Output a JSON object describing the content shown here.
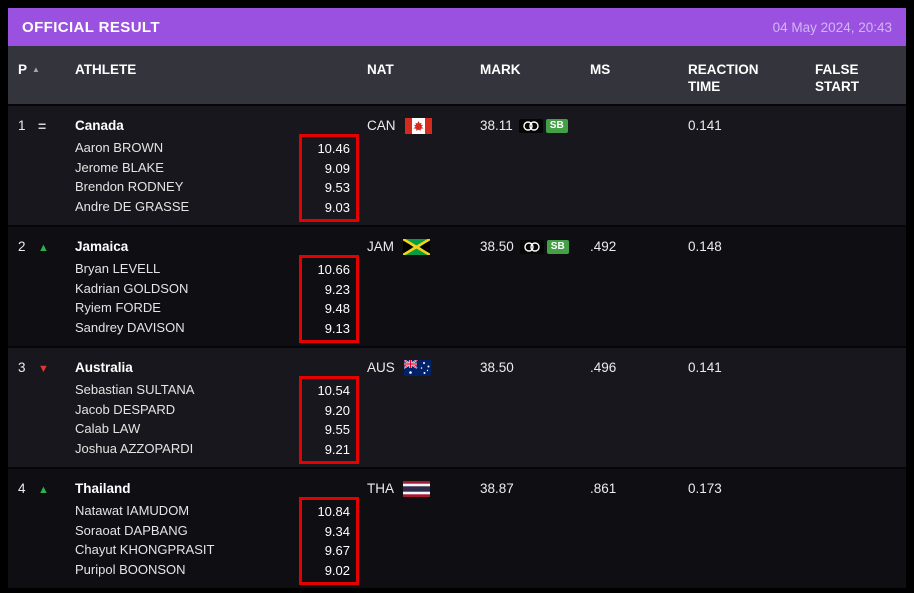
{
  "header": {
    "title": "OFFICIAL RESULT",
    "datetime": "04 May 2024, 20:43"
  },
  "table": {
    "columns": {
      "pos": "P",
      "athlete": "ATHLETE",
      "nat": "NAT",
      "mark": "MARK",
      "ms": "MS",
      "reaction": "REACTION TIME",
      "false_start": "FALSE START"
    },
    "rows": [
      {
        "pos": "1",
        "change": "same",
        "change_symbol": "=",
        "team": "Canada",
        "nat": "CAN",
        "mark": "38.11",
        "badges": [
          {
            "type": "olympic-qualifier",
            "label": ""
          },
          {
            "type": "season-best",
            "label": "SB"
          }
        ],
        "ms": "",
        "reaction": "0.141",
        "false_start": "",
        "athletes": [
          {
            "name": "Aaron BROWN",
            "split": "10.46"
          },
          {
            "name": "Jerome BLAKE",
            "split": "9.09"
          },
          {
            "name": "Brendon RODNEY",
            "split": "9.53"
          },
          {
            "name": "Andre DE GRASSE",
            "split": "9.03"
          }
        ]
      },
      {
        "pos": "2",
        "change": "up",
        "change_symbol": "▲",
        "team": "Jamaica",
        "nat": "JAM",
        "mark": "38.50",
        "badges": [
          {
            "type": "olympic-qualifier",
            "label": ""
          },
          {
            "type": "season-best",
            "label": "SB"
          }
        ],
        "ms": ".492",
        "reaction": "0.148",
        "false_start": "",
        "athletes": [
          {
            "name": "Bryan LEVELL",
            "split": "10.66"
          },
          {
            "name": "Kadrian GOLDSON",
            "split": "9.23"
          },
          {
            "name": "Ryiem FORDE",
            "split": "9.48"
          },
          {
            "name": "Sandrey DAVISON",
            "split": "9.13"
          }
        ]
      },
      {
        "pos": "3",
        "change": "down",
        "change_symbol": "▼",
        "team": "Australia",
        "nat": "AUS",
        "mark": "38.50",
        "badges": [],
        "ms": ".496",
        "reaction": "0.141",
        "false_start": "",
        "athletes": [
          {
            "name": "Sebastian SULTANA",
            "split": "10.54"
          },
          {
            "name": "Jacob DESPARD",
            "split": "9.20"
          },
          {
            "name": "Calab LAW",
            "split": "9.55"
          },
          {
            "name": "Joshua AZZOPARDI",
            "split": "9.21"
          }
        ]
      },
      {
        "pos": "4",
        "change": "up",
        "change_symbol": "▲",
        "team": "Thailand",
        "nat": "THA",
        "mark": "38.87",
        "badges": [],
        "ms": ".861",
        "reaction": "0.173",
        "false_start": "",
        "athletes": [
          {
            "name": "Natawat IAMUDOM",
            "split": "10.84"
          },
          {
            "name": "Soraoat DAPBANG",
            "split": "9.34"
          },
          {
            "name": "Chayut KHONGPRASIT",
            "split": "9.67"
          },
          {
            "name": "Puripol BOONSON",
            "split": "9.02"
          }
        ]
      }
    ]
  },
  "colors": {
    "accent_purple": "#9b51e0",
    "datetime_text": "#d2b6f2",
    "up_green": "#2fb14a",
    "down_red": "#e0382f",
    "annotation_red": "#e60000",
    "sb_green": "#44a047"
  }
}
